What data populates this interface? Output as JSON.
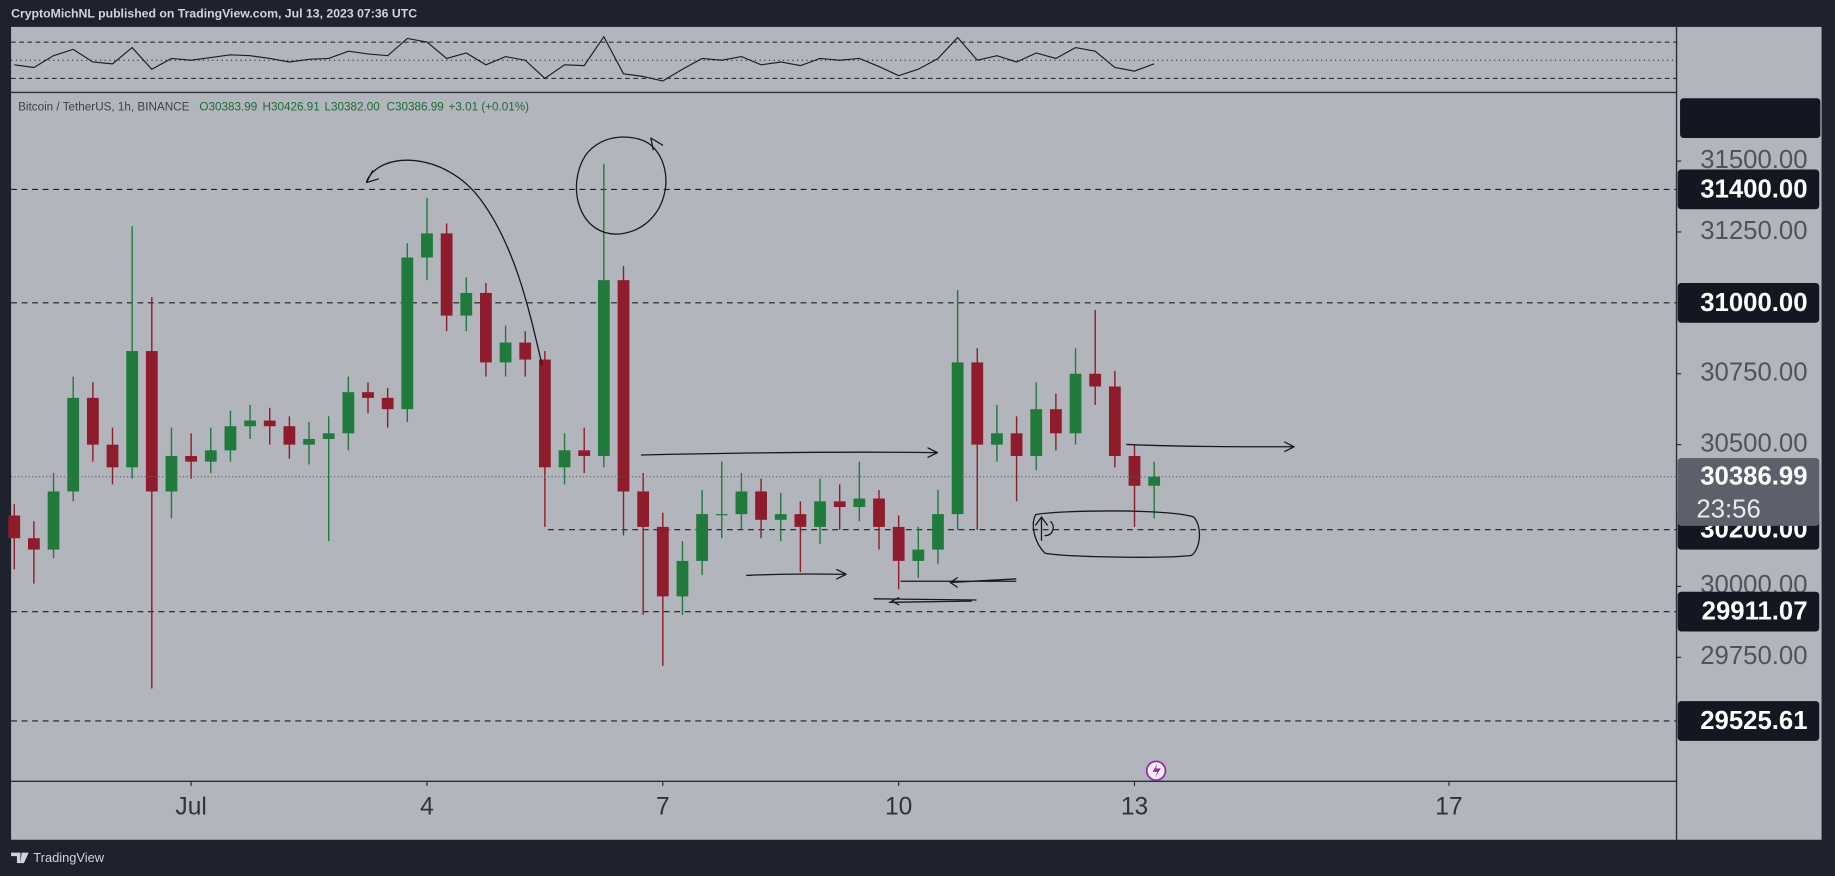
{
  "header": {
    "text": "CryptoMichNL published on TradingView.com, Jul 13, 2023 07:36 UTC"
  },
  "footer": {
    "brand": "TradingView"
  },
  "chart_data": [
    {
      "type": "candlestick",
      "title": "Bitcoin / TetherUS, 1h, BINANCE",
      "legend": [
        "O30383.99",
        "H30426.91",
        "L30382.00",
        "C30386.99",
        "+3.01 (+0.01%)"
      ],
      "countdown": "23:56",
      "up_color": "#1f7a3c",
      "down_color": "#8e1c2c",
      "x": [
        -1.25,
        -1,
        -0.75,
        -0.5,
        -0.25,
        0,
        0.25,
        0.5,
        0.75,
        1,
        1.25,
        1.5,
        1.75,
        2,
        2.25,
        2.5,
        2.75,
        3,
        3.25,
        3.5,
        3.75,
        4,
        4.25,
        4.5,
        4.75,
        5,
        5.25,
        5.5,
        5.75,
        6,
        6.25,
        6.5,
        6.75,
        7,
        7.25,
        7.5,
        7.75,
        8,
        8.25,
        8.5,
        8.75,
        9,
        9.25,
        9.5,
        9.75,
        10,
        10.25,
        10.5,
        10.75,
        11,
        11.25,
        11.5,
        11.75,
        12,
        12.25,
        12.5,
        12.75,
        13,
        13.25
      ],
      "open": [
        30250,
        30170,
        30130,
        30335,
        30665,
        30500,
        30420,
        30830,
        30335,
        30460,
        30440,
        30480,
        30565,
        30585,
        30565,
        30500,
        30520,
        30540,
        30685,
        30665,
        30625,
        31160,
        31245,
        30955,
        31035,
        30790,
        30860,
        30800,
        30420,
        30480,
        30460,
        31080,
        30335,
        30210,
        29965,
        30090,
        30255,
        30255,
        30335,
        30235,
        30255,
        30210,
        30300,
        30280,
        30310,
        30210,
        30090,
        30130,
        30255,
        30790,
        30500,
        30540,
        30460,
        30625,
        30540,
        30750,
        30705,
        30460,
        30355
      ],
      "high": [
        30290,
        30230,
        30400,
        30740,
        30720,
        30560,
        31270,
        31020,
        30560,
        30540,
        30560,
        30620,
        30640,
        30630,
        30600,
        30580,
        30600,
        30740,
        30720,
        30700,
        31210,
        31370,
        31280,
        31090,
        31070,
        30920,
        30900,
        30830,
        30540,
        30560,
        31490,
        31130,
        30400,
        30260,
        30160,
        30340,
        30440,
        30400,
        30380,
        30330,
        30300,
        30380,
        30360,
        30440,
        30340,
        30250,
        30210,
        30340,
        31045,
        30840,
        30640,
        30600,
        30720,
        30680,
        30840,
        30975,
        30760,
        30500,
        30440
      ],
      "low": [
        30060,
        30010,
        30100,
        30300,
        30440,
        30360,
        30380,
        29640,
        30240,
        30380,
        30400,
        30440,
        30520,
        30500,
        30450,
        30430,
        30160,
        30480,
        30610,
        30560,
        30580,
        31080,
        30900,
        30900,
        30740,
        30740,
        30740,
        30210,
        30360,
        30400,
        30420,
        30180,
        29900,
        29720,
        29900,
        30040,
        30170,
        30200,
        30170,
        30160,
        30050,
        30150,
        30200,
        30230,
        30130,
        29990,
        30030,
        30080,
        30200,
        30200,
        30440,
        30300,
        30410,
        30480,
        30500,
        30640,
        30420,
        30210,
        30240
      ],
      "close": [
        30170,
        30130,
        30335,
        30665,
        30500,
        30420,
        30830,
        30335,
        30460,
        30440,
        30480,
        30565,
        30585,
        30565,
        30500,
        30520,
        30540,
        30685,
        30665,
        30625,
        31160,
        31245,
        30955,
        31035,
        30790,
        30860,
        30800,
        30420,
        30480,
        30460,
        31080,
        30335,
        30210,
        29965,
        30090,
        30255,
        30255,
        30335,
        30235,
        30255,
        30210,
        30300,
        30280,
        30310,
        30210,
        30090,
        30130,
        30255,
        30790,
        30500,
        30540,
        30460,
        30625,
        30540,
        30750,
        30705,
        30460,
        30355,
        30386.99
      ],
      "xlim": [
        -1.29,
        19.88
      ],
      "xticks": [
        {
          "value": 1,
          "label": "Jul"
        },
        4,
        7,
        10,
        13,
        17
      ],
      "ylim": [
        29313,
        31738
      ],
      "yticks": [
        {
          "value": 31500,
          "label": "31500.00"
        },
        {
          "value": 31250,
          "label": "31250.00"
        },
        {
          "value": 30750,
          "label": "30750.00"
        },
        {
          "value": 30500,
          "label": "30500.00"
        },
        {
          "value": 30000,
          "label": "30000.00"
        },
        {
          "value": 29750,
          "label": "29750.00"
        }
      ],
      "levels": [
        {
          "value": 31400,
          "label": "31400.00"
        },
        {
          "value": 31000,
          "label": "31000.00"
        },
        {
          "value": 30200,
          "label": "30200.00",
          "from": 5.54
        },
        {
          "value": 29911.07,
          "label": "29911.07"
        },
        {
          "value": 29525.61,
          "label": "29525.61"
        }
      ]
    },
    {
      "type": "line",
      "values": [
        45,
        42,
        55,
        62,
        48,
        46,
        64,
        40,
        52,
        50,
        53,
        56,
        55,
        52,
        48,
        51,
        52,
        60,
        57,
        55,
        74,
        70,
        52,
        58,
        45,
        54,
        50,
        30,
        45,
        44,
        76,
        35,
        32,
        27,
        40,
        52,
        50,
        54,
        45,
        48,
        44,
        52,
        50,
        52,
        43,
        33,
        40,
        52,
        75,
        50,
        55,
        48,
        58,
        52,
        64,
        60,
        42,
        38,
        46
      ],
      "color": "#1c1e24",
      "ylim": [
        15.8,
        84.2
      ],
      "levels": [
        70,
        50,
        30
      ]
    }
  ]
}
